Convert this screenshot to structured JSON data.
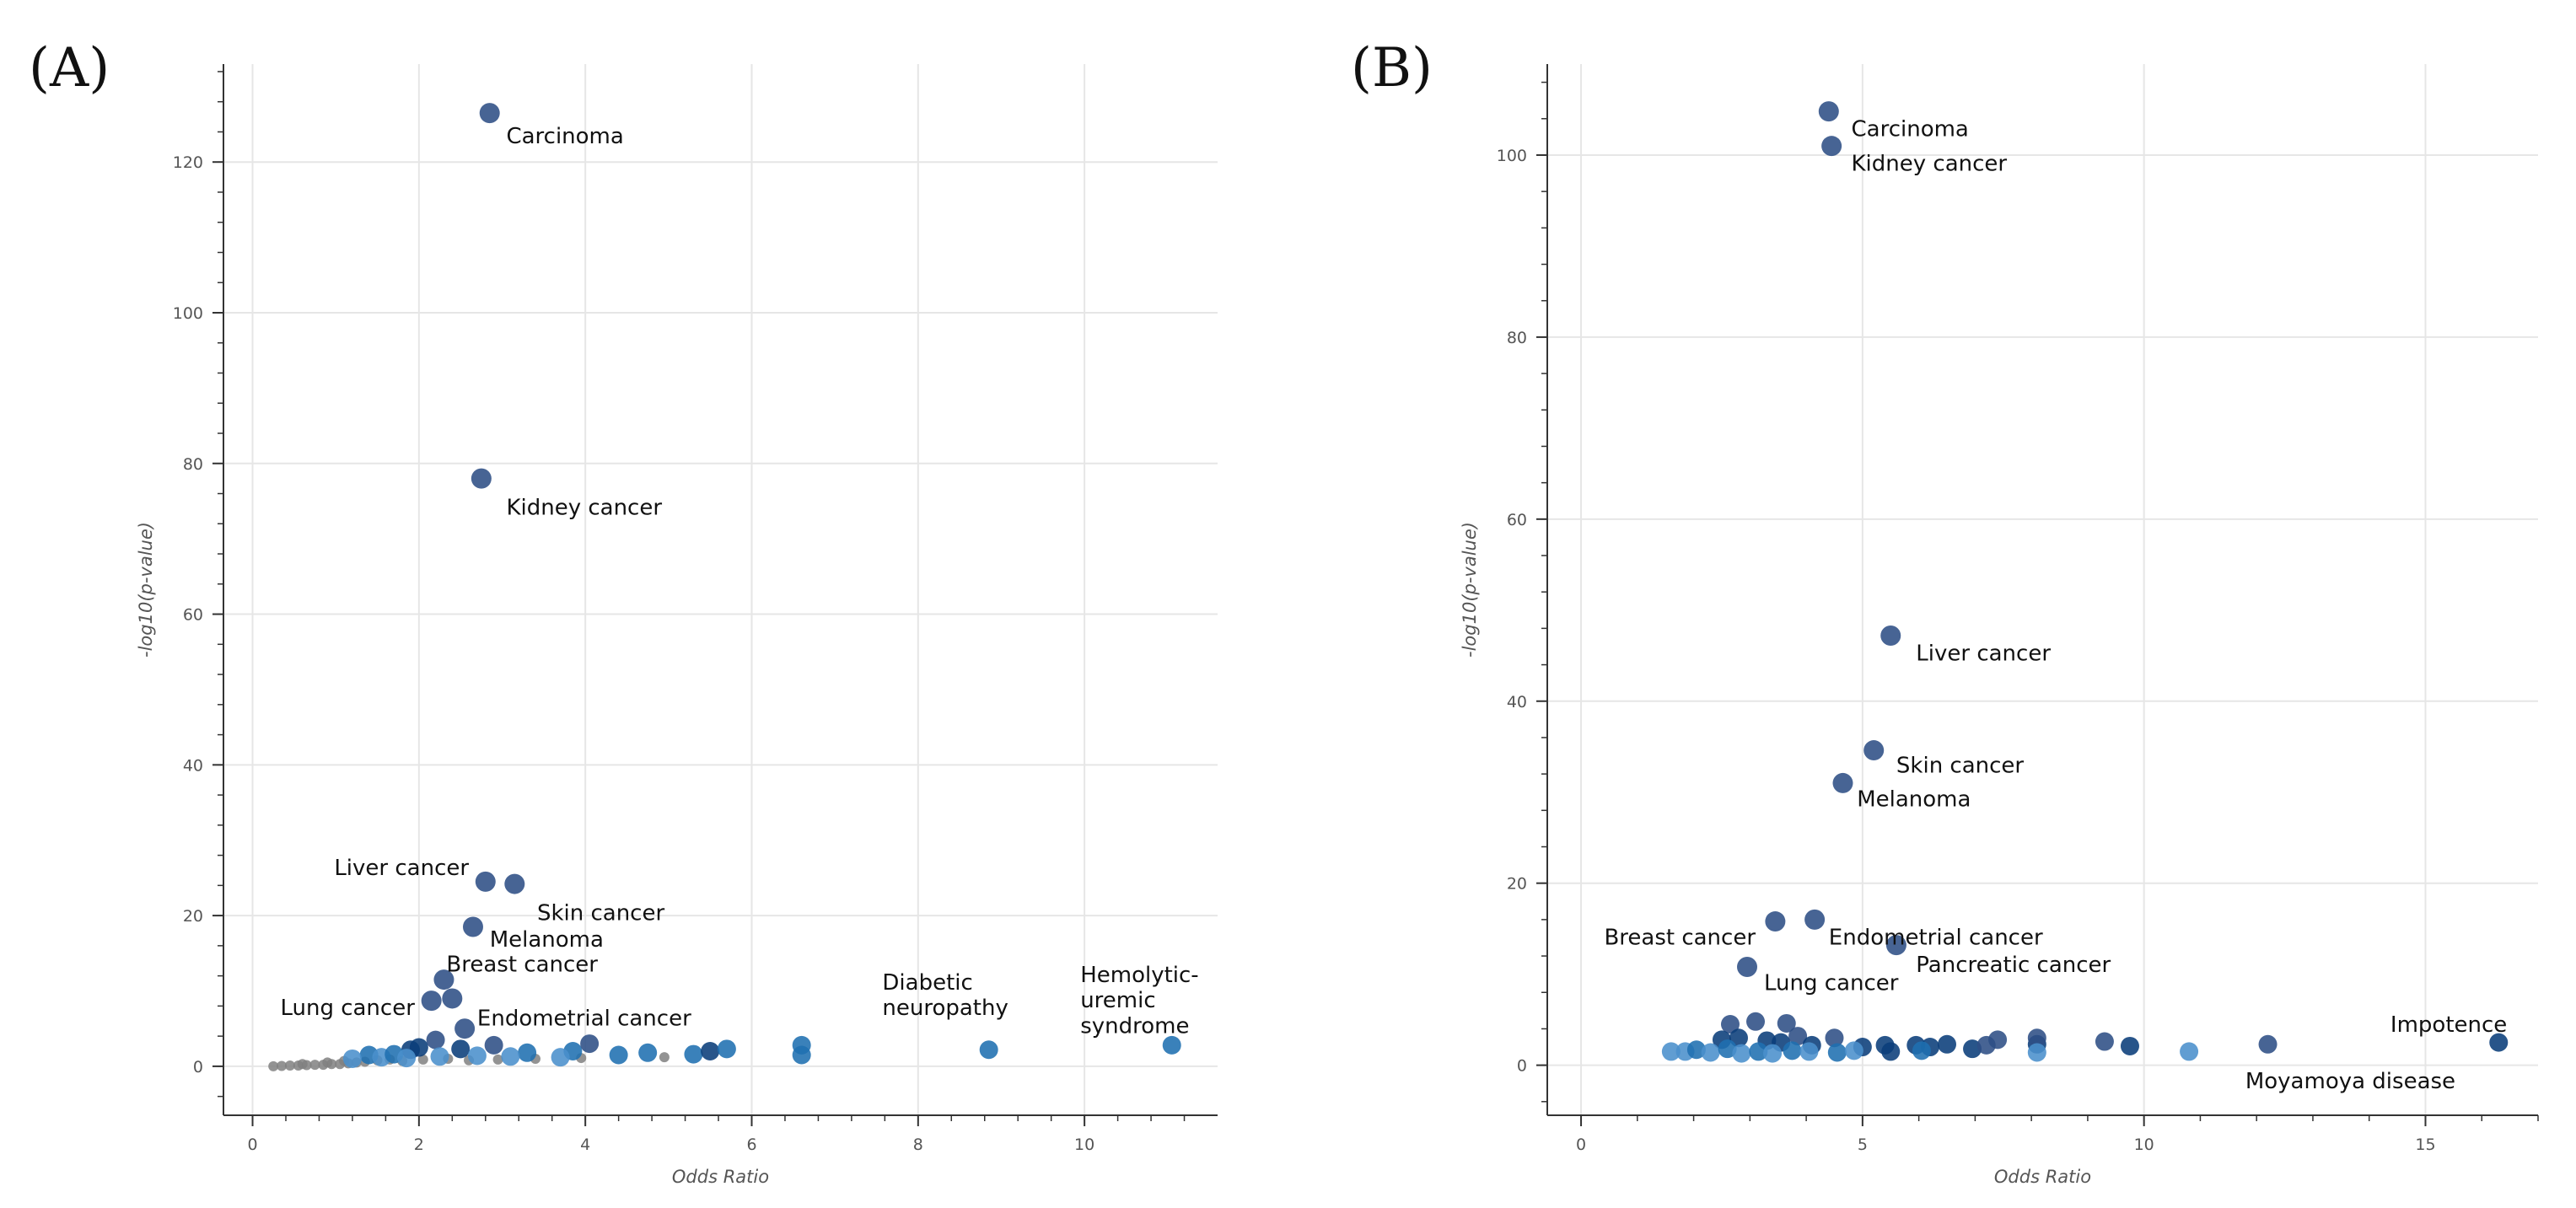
{
  "figure": {
    "panels": [
      {
        "label": "(A)"
      },
      {
        "label": "(B)"
      }
    ]
  },
  "colors": {
    "dark": "#0a3d7a",
    "steel": "#2d4f85",
    "mid": "#1f6fb0",
    "light": "#4a90cc",
    "gray": "#808080",
    "grid": "#e6e6e6",
    "axis": "#333333"
  },
  "chart_data": [
    {
      "type": "scatter",
      "panel": "(A)",
      "title": "",
      "xlabel": "Odds Ratio",
      "ylabel": "-log10(p-value)",
      "xlim": [
        -0.35,
        11.6
      ],
      "ylim": [
        -6.5,
        133
      ],
      "xticks": [
        0,
        2,
        4,
        6,
        8,
        10
      ],
      "yticks": [
        0,
        20,
        40,
        60,
        80,
        100,
        120
      ],
      "points": [
        {
          "x": 2.85,
          "y": 126.5,
          "c": "steel",
          "s": "big"
        },
        {
          "x": 2.75,
          "y": 78,
          "c": "steel",
          "s": "big"
        },
        {
          "x": 2.8,
          "y": 24.5,
          "c": "steel",
          "s": "big"
        },
        {
          "x": 3.15,
          "y": 24.2,
          "c": "steel",
          "s": "big"
        },
        {
          "x": 2.65,
          "y": 18.5,
          "c": "steel",
          "s": "big"
        },
        {
          "x": 2.3,
          "y": 11.5,
          "c": "steel",
          "s": "big"
        },
        {
          "x": 2.15,
          "y": 8.7,
          "c": "steel",
          "s": "big"
        },
        {
          "x": 2.4,
          "y": 9.0,
          "c": "steel",
          "s": "big"
        },
        {
          "x": 2.55,
          "y": 5.0,
          "c": "steel",
          "s": "big"
        },
        {
          "x": 2.2,
          "y": 3.5,
          "c": "steel",
          "s": "med"
        },
        {
          "x": 1.9,
          "y": 2.2,
          "c": "dark",
          "s": "med"
        },
        {
          "x": 2.0,
          "y": 2.5,
          "c": "dark",
          "s": "med"
        },
        {
          "x": 2.5,
          "y": 2.3,
          "c": "dark",
          "s": "med"
        },
        {
          "x": 2.9,
          "y": 2.8,
          "c": "steel",
          "s": "med"
        },
        {
          "x": 3.3,
          "y": 1.8,
          "c": "mid",
          "s": "med"
        },
        {
          "x": 3.85,
          "y": 2.0,
          "c": "mid",
          "s": "med"
        },
        {
          "x": 4.05,
          "y": 3.0,
          "c": "steel",
          "s": "med"
        },
        {
          "x": 4.4,
          "y": 1.5,
          "c": "mid",
          "s": "med"
        },
        {
          "x": 4.75,
          "y": 1.8,
          "c": "mid",
          "s": "med"
        },
        {
          "x": 5.3,
          "y": 1.6,
          "c": "mid",
          "s": "med"
        },
        {
          "x": 5.5,
          "y": 2.0,
          "c": "dark",
          "s": "med"
        },
        {
          "x": 5.7,
          "y": 2.3,
          "c": "mid",
          "s": "med"
        },
        {
          "x": 6.6,
          "y": 2.8,
          "c": "mid",
          "s": "med"
        },
        {
          "x": 6.6,
          "y": 1.5,
          "c": "mid",
          "s": "med"
        },
        {
          "x": 8.85,
          "y": 2.2,
          "c": "mid",
          "s": "med"
        },
        {
          "x": 11.05,
          "y": 2.8,
          "c": "mid",
          "s": "med"
        },
        {
          "x": 1.4,
          "y": 1.5,
          "c": "mid",
          "s": "med"
        },
        {
          "x": 1.55,
          "y": 1.2,
          "c": "light",
          "s": "med"
        },
        {
          "x": 1.7,
          "y": 1.6,
          "c": "mid",
          "s": "med"
        },
        {
          "x": 2.25,
          "y": 1.3,
          "c": "light",
          "s": "med"
        },
        {
          "x": 2.7,
          "y": 1.4,
          "c": "light",
          "s": "med"
        },
        {
          "x": 3.1,
          "y": 1.3,
          "c": "light",
          "s": "med"
        },
        {
          "x": 3.7,
          "y": 1.2,
          "c": "light",
          "s": "med"
        },
        {
          "x": 1.2,
          "y": 1.0,
          "c": "light",
          "s": "med"
        },
        {
          "x": 1.85,
          "y": 1.1,
          "c": "light",
          "s": "med"
        },
        {
          "x": 0.25,
          "y": 0.0,
          "c": "gray",
          "s": "small"
        },
        {
          "x": 0.35,
          "y": 0.05,
          "c": "gray",
          "s": "small"
        },
        {
          "x": 0.45,
          "y": 0.1,
          "c": "gray",
          "s": "small"
        },
        {
          "x": 0.55,
          "y": 0.1,
          "c": "gray",
          "s": "small"
        },
        {
          "x": 0.65,
          "y": 0.15,
          "c": "gray",
          "s": "small"
        },
        {
          "x": 0.75,
          "y": 0.2,
          "c": "gray",
          "s": "small"
        },
        {
          "x": 0.85,
          "y": 0.2,
          "c": "gray",
          "s": "small"
        },
        {
          "x": 0.95,
          "y": 0.3,
          "c": "gray",
          "s": "small"
        },
        {
          "x": 1.05,
          "y": 0.3,
          "c": "gray",
          "s": "small"
        },
        {
          "x": 1.15,
          "y": 0.4,
          "c": "gray",
          "s": "small"
        },
        {
          "x": 1.25,
          "y": 0.5,
          "c": "gray",
          "s": "small"
        },
        {
          "x": 1.35,
          "y": 0.6,
          "c": "gray",
          "s": "small"
        },
        {
          "x": 1.5,
          "y": 0.8,
          "c": "gray",
          "s": "small"
        },
        {
          "x": 1.65,
          "y": 0.9,
          "c": "gray",
          "s": "small"
        },
        {
          "x": 1.8,
          "y": 0.7,
          "c": "gray",
          "s": "small"
        },
        {
          "x": 2.05,
          "y": 0.9,
          "c": "gray",
          "s": "small"
        },
        {
          "x": 2.35,
          "y": 1.0,
          "c": "gray",
          "s": "small"
        },
        {
          "x": 2.6,
          "y": 0.8,
          "c": "gray",
          "s": "small"
        },
        {
          "x": 2.95,
          "y": 0.9,
          "c": "gray",
          "s": "small"
        },
        {
          "x": 3.4,
          "y": 1.0,
          "c": "gray",
          "s": "small"
        },
        {
          "x": 3.95,
          "y": 1.1,
          "c": "gray",
          "s": "small"
        },
        {
          "x": 4.95,
          "y": 1.2,
          "c": "gray",
          "s": "small"
        },
        {
          "x": 0.6,
          "y": 0.3,
          "c": "gray",
          "s": "small"
        },
        {
          "x": 0.9,
          "y": 0.5,
          "c": "gray",
          "s": "small"
        },
        {
          "x": 1.1,
          "y": 0.7,
          "c": "gray",
          "s": "small"
        }
      ],
      "annotations": [
        {
          "text": "Carcinoma",
          "x": 3.05,
          "y": 123.5,
          "anchor": "start"
        },
        {
          "text": "Kidney cancer",
          "x": 3.05,
          "y": 74.2,
          "anchor": "start"
        },
        {
          "text": "Liver cancer",
          "x": 2.6,
          "y": 26.4,
          "anchor": "end"
        },
        {
          "text": "Skin cancer",
          "x": 3.42,
          "y": 20.4,
          "anchor": "start"
        },
        {
          "text": "Melanoma",
          "x": 2.85,
          "y": 16.9,
          "anchor": "start"
        },
        {
          "text": "Breast cancer",
          "x": 2.33,
          "y": 13.6,
          "anchor": "start"
        },
        {
          "text": "Lung cancer",
          "x": 1.95,
          "y": 7.8,
          "anchor": "end"
        },
        {
          "text": "Endometrial cancer",
          "x": 2.7,
          "y": 6.4,
          "anchor": "start"
        },
        {
          "text": "Diabetic",
          "x": 7.57,
          "y": 11.2,
          "anchor": "start"
        },
        {
          "text": "neuropathy",
          "x": 7.57,
          "y": 7.8,
          "anchor": "start"
        },
        {
          "text": "Hemolytic-",
          "x": 9.95,
          "y": 12.2,
          "anchor": "start"
        },
        {
          "text": "uremic",
          "x": 9.95,
          "y": 8.8,
          "anchor": "start"
        },
        {
          "text": "syndrome",
          "x": 9.95,
          "y": 5.4,
          "anchor": "start"
        }
      ]
    },
    {
      "type": "scatter",
      "panel": "(B)",
      "title": "",
      "xlabel": "Odds Ratio",
      "ylabel": "-log10(p-value)",
      "xlim": [
        -0.6,
        17.0
      ],
      "ylim": [
        -5.5,
        110
      ],
      "xticks": [
        0,
        5,
        10,
        15
      ],
      "yticks": [
        0,
        20,
        40,
        60,
        80,
        100
      ],
      "points": [
        {
          "x": 4.4,
          "y": 104.8,
          "c": "steel",
          "s": "big"
        },
        {
          "x": 4.45,
          "y": 101.0,
          "c": "steel",
          "s": "big"
        },
        {
          "x": 5.5,
          "y": 47.2,
          "c": "steel",
          "s": "big"
        },
        {
          "x": 5.2,
          "y": 34.6,
          "c": "steel",
          "s": "big"
        },
        {
          "x": 4.65,
          "y": 31.0,
          "c": "steel",
          "s": "big"
        },
        {
          "x": 3.45,
          "y": 15.8,
          "c": "steel",
          "s": "big"
        },
        {
          "x": 4.15,
          "y": 16.0,
          "c": "steel",
          "s": "big"
        },
        {
          "x": 5.6,
          "y": 13.2,
          "c": "steel",
          "s": "big"
        },
        {
          "x": 2.95,
          "y": 10.8,
          "c": "steel",
          "s": "big"
        },
        {
          "x": 2.65,
          "y": 4.5,
          "c": "steel",
          "s": "med"
        },
        {
          "x": 3.1,
          "y": 4.8,
          "c": "steel",
          "s": "med"
        },
        {
          "x": 3.65,
          "y": 4.6,
          "c": "steel",
          "s": "med"
        },
        {
          "x": 3.85,
          "y": 3.2,
          "c": "steel",
          "s": "med"
        },
        {
          "x": 4.5,
          "y": 3.0,
          "c": "steel",
          "s": "med"
        },
        {
          "x": 2.5,
          "y": 2.8,
          "c": "dark",
          "s": "med"
        },
        {
          "x": 2.8,
          "y": 3.0,
          "c": "dark",
          "s": "med"
        },
        {
          "x": 3.3,
          "y": 2.7,
          "c": "dark",
          "s": "med"
        },
        {
          "x": 3.55,
          "y": 2.5,
          "c": "dark",
          "s": "med"
        },
        {
          "x": 4.1,
          "y": 2.2,
          "c": "dark",
          "s": "med"
        },
        {
          "x": 5.0,
          "y": 2.0,
          "c": "dark",
          "s": "med"
        },
        {
          "x": 5.4,
          "y": 2.2,
          "c": "dark",
          "s": "med"
        },
        {
          "x": 5.95,
          "y": 2.2,
          "c": "dark",
          "s": "med"
        },
        {
          "x": 6.2,
          "y": 2.0,
          "c": "dark",
          "s": "med"
        },
        {
          "x": 6.5,
          "y": 2.3,
          "c": "dark",
          "s": "med"
        },
        {
          "x": 6.95,
          "y": 1.8,
          "c": "dark",
          "s": "med"
        },
        {
          "x": 7.2,
          "y": 2.2,
          "c": "steel",
          "s": "med"
        },
        {
          "x": 7.4,
          "y": 2.8,
          "c": "steel",
          "s": "med"
        },
        {
          "x": 8.1,
          "y": 2.3,
          "c": "dark",
          "s": "med"
        },
        {
          "x": 8.1,
          "y": 3.0,
          "c": "steel",
          "s": "med"
        },
        {
          "x": 9.3,
          "y": 2.6,
          "c": "steel",
          "s": "med"
        },
        {
          "x": 9.75,
          "y": 2.1,
          "c": "dark",
          "s": "med"
        },
        {
          "x": 10.8,
          "y": 1.5,
          "c": "light",
          "s": "med"
        },
        {
          "x": 12.2,
          "y": 2.3,
          "c": "steel",
          "s": "med"
        },
        {
          "x": 16.3,
          "y": 2.5,
          "c": "dark",
          "s": "med"
        },
        {
          "x": 1.6,
          "y": 1.5,
          "c": "light",
          "s": "med"
        },
        {
          "x": 1.85,
          "y": 1.5,
          "c": "light",
          "s": "med"
        },
        {
          "x": 2.05,
          "y": 1.7,
          "c": "mid",
          "s": "med"
        },
        {
          "x": 2.3,
          "y": 1.4,
          "c": "light",
          "s": "med"
        },
        {
          "x": 2.6,
          "y": 1.8,
          "c": "mid",
          "s": "med"
        },
        {
          "x": 2.85,
          "y": 1.3,
          "c": "light",
          "s": "med"
        },
        {
          "x": 3.15,
          "y": 1.5,
          "c": "mid",
          "s": "med"
        },
        {
          "x": 3.4,
          "y": 1.3,
          "c": "light",
          "s": "med"
        },
        {
          "x": 3.75,
          "y": 1.6,
          "c": "mid",
          "s": "med"
        },
        {
          "x": 4.05,
          "y": 1.5,
          "c": "light",
          "s": "med"
        },
        {
          "x": 4.55,
          "y": 1.4,
          "c": "mid",
          "s": "med"
        },
        {
          "x": 4.85,
          "y": 1.6,
          "c": "light",
          "s": "med"
        },
        {
          "x": 5.5,
          "y": 1.5,
          "c": "dark",
          "s": "med"
        },
        {
          "x": 6.05,
          "y": 1.6,
          "c": "mid",
          "s": "med"
        },
        {
          "x": 8.1,
          "y": 1.4,
          "c": "light",
          "s": "med"
        }
      ],
      "annotations": [
        {
          "text": "Carcinoma",
          "x": 4.8,
          "y": 102.9,
          "anchor": "start"
        },
        {
          "text": "Kidney cancer",
          "x": 4.8,
          "y": 99.1,
          "anchor": "start"
        },
        {
          "text": "Liver cancer",
          "x": 5.95,
          "y": 45.3,
          "anchor": "start"
        },
        {
          "text": "Skin cancer",
          "x": 5.6,
          "y": 33.0,
          "anchor": "start"
        },
        {
          "text": "Melanoma",
          "x": 4.9,
          "y": 29.3,
          "anchor": "start"
        },
        {
          "text": "Breast cancer",
          "x": 3.1,
          "y": 14.1,
          "anchor": "end"
        },
        {
          "text": "Endometrial cancer",
          "x": 4.4,
          "y": 14.1,
          "anchor": "start"
        },
        {
          "text": "Pancreatic cancer",
          "x": 5.95,
          "y": 11.1,
          "anchor": "start"
        },
        {
          "text": "Lung cancer",
          "x": 3.25,
          "y": 9.1,
          "anchor": "start"
        },
        {
          "text": "Impotence",
          "x": 16.45,
          "y": 4.5,
          "anchor": "end"
        },
        {
          "text": "Moyamoya disease",
          "x": 11.8,
          "y": -1.7,
          "anchor": "start"
        }
      ]
    }
  ]
}
